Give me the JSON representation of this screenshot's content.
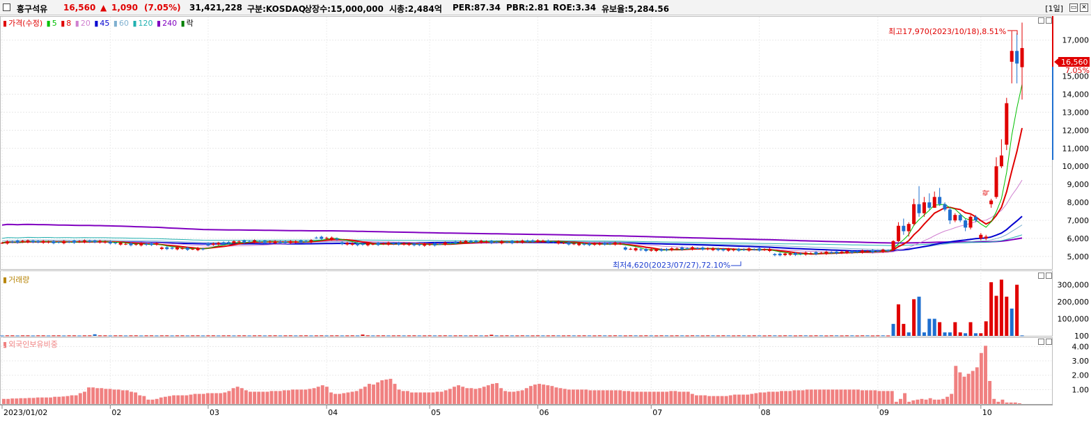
{
  "header": {
    "stock_name": "흥구석유",
    "price": "16,560",
    "change_arrow": "▲",
    "change": "1,090",
    "change_pct": "(7.05%)",
    "volume": "31,421,228",
    "market": "구분:KOSDAQ",
    "shares": "상장수:15,000,000",
    "mcap": "시총:2,484억",
    "per": "PER:87.34",
    "pbr": "PBR:2.81",
    "roe": "ROE:3.34",
    "float": "유보율:5,284.56",
    "period": "[1일]"
  },
  "colors": {
    "up": "#e00000",
    "down": "#1e6fd0",
    "ma5": "#00c000",
    "ma8": "#e00000",
    "ma20": "#d080d0",
    "ma45": "#0000d0",
    "ma60": "#7fb0d0",
    "ma120": "#20b0b0",
    "ma240": "#8000c0",
    "volume_up": "#e00000",
    "volume_down": "#1e6fd0",
    "foreign": "#f08080"
  },
  "legend": {
    "price_label": "가격(수정)",
    "ma5": "5",
    "ma8": "8",
    "ma20": "20",
    "ma45": "45",
    "ma60": "60",
    "ma120": "120",
    "ma240": "240",
    "rak": "락",
    "volume_label": "거래량",
    "foreign_label": "외국인보유비중"
  },
  "chart_data": [
    {
      "type": "candlestick",
      "name": "price",
      "x_range": [
        "2023/01/02",
        "2023/10/19"
      ],
      "x_tick_labels": [
        "2023/01/02",
        "02",
        "03",
        "04",
        "05",
        "06",
        "07",
        "08",
        "09",
        "10"
      ],
      "ylim": [
        4300,
        18300
      ],
      "y_ticks": [
        5000,
        6000,
        7000,
        8000,
        9000,
        10000,
        11000,
        12000,
        13000,
        14000,
        15000,
        17000
      ],
      "y_tick_labels": [
        "5,000",
        "6,000",
        "7,000",
        "8,000",
        "9,000",
        "10,000",
        "11,000",
        "12,000",
        "13,000",
        "14,000",
        "15,000",
        "17,000"
      ],
      "current_price_label": "16,560",
      "current_pct_label": "7.05%",
      "high_annotation": "최고17,970(2023/10/18),8.51%",
      "low_annotation": "최저4,620(2023/07/27),72.10%",
      "rak_marker": "락",
      "recent_candles": [
        {
          "date": "09/06",
          "open": 5350,
          "high": 5900,
          "low": 5300,
          "close": 5850
        },
        {
          "date": "09/07",
          "open": 5850,
          "high": 6900,
          "low": 5800,
          "close": 6700
        },
        {
          "date": "09/08",
          "open": 6700,
          "high": 7100,
          "low": 6200,
          "close": 6400
        },
        {
          "date": "09/11",
          "open": 6400,
          "high": 6900,
          "low": 6100,
          "close": 6800
        },
        {
          "date": "09/12",
          "open": 6800,
          "high": 8200,
          "low": 6700,
          "close": 7900
        },
        {
          "date": "09/13",
          "open": 7900,
          "high": 8900,
          "low": 7200,
          "close": 7400
        },
        {
          "date": "09/14",
          "open": 7400,
          "high": 8300,
          "low": 7200,
          "close": 8000
        },
        {
          "date": "09/15",
          "open": 8000,
          "high": 8500,
          "low": 7600,
          "close": 7700
        },
        {
          "date": "09/18",
          "open": 7700,
          "high": 8600,
          "low": 7700,
          "close": 8300
        },
        {
          "date": "09/19",
          "open": 8300,
          "high": 8800,
          "low": 7800,
          "close": 7900
        },
        {
          "date": "09/20",
          "open": 7900,
          "high": 8000,
          "low": 7500,
          "close": 7600
        },
        {
          "date": "09/21",
          "open": 7600,
          "high": 7700,
          "low": 6800,
          "close": 7000
        },
        {
          "date": "09/22",
          "open": 7000,
          "high": 7400,
          "low": 6900,
          "close": 7300
        },
        {
          "date": "09/25",
          "open": 7300,
          "high": 7400,
          "low": 6900,
          "close": 7000
        },
        {
          "date": "09/26",
          "open": 7000,
          "high": 7100,
          "low": 6400,
          "close": 6600
        },
        {
          "date": "09/27",
          "open": 6600,
          "high": 7300,
          "low": 6500,
          "close": 7200
        },
        {
          "date": "10/04",
          "open": 7200,
          "high": 7300,
          "low": 6900,
          "close": 7000
        },
        {
          "date": "10/05",
          "open": 6000,
          "high": 6300,
          "low": 5900,
          "close": 6200
        },
        {
          "date": "10/06",
          "open": 6000,
          "high": 6200,
          "low": 5900,
          "close": 6100
        },
        {
          "date": "10/10",
          "open": 7900,
          "high": 8200,
          "low": 7700,
          "close": 8100
        },
        {
          "date": "10/11",
          "open": 8300,
          "high": 10500,
          "low": 8200,
          "close": 10000
        },
        {
          "date": "10/12",
          "open": 10000,
          "high": 11500,
          "low": 9900,
          "close": 10600
        },
        {
          "date": "10/13",
          "open": 11200,
          "high": 13800,
          "low": 10900,
          "close": 13500
        },
        {
          "date": "10/16",
          "open": 15800,
          "high": 17500,
          "low": 14600,
          "close": 16400
        },
        {
          "date": "10/17",
          "open": 16400,
          "high": 17400,
          "low": 14600,
          "close": 15700
        },
        {
          "date": "10/18",
          "open": 15500,
          "high": 17970,
          "low": 13700,
          "close": 16560
        }
      ]
    },
    {
      "type": "bar",
      "name": "volume",
      "ylim": [
        0,
        380000
      ],
      "y_ticks": [
        100,
        100000,
        200000,
        300000
      ],
      "y_tick_labels": [
        "100",
        "100,000",
        "200,000",
        "300,000"
      ],
      "recent_values": [
        {
          "date": "09/06",
          "value": 70000,
          "dir": "down"
        },
        {
          "date": "09/07",
          "value": 185000,
          "dir": "up"
        },
        {
          "date": "09/08",
          "value": 70000,
          "dir": "up"
        },
        {
          "date": "09/11",
          "value": 20000,
          "dir": "down"
        },
        {
          "date": "09/12",
          "value": 215000,
          "dir": "up"
        },
        {
          "date": "09/13",
          "value": 230000,
          "dir": "down"
        },
        {
          "date": "09/14",
          "value": 20000,
          "dir": "down"
        },
        {
          "date": "09/15",
          "value": 100000,
          "dir": "down"
        },
        {
          "date": "09/18",
          "value": 100000,
          "dir": "down"
        },
        {
          "date": "09/19",
          "value": 80000,
          "dir": "up"
        },
        {
          "date": "09/20",
          "value": 20000,
          "dir": "down"
        },
        {
          "date": "09/21",
          "value": 20000,
          "dir": "down"
        },
        {
          "date": "09/22",
          "value": 80000,
          "dir": "up"
        },
        {
          "date": "09/25",
          "value": 20000,
          "dir": "up"
        },
        {
          "date": "09/26",
          "value": 15000,
          "dir": "down"
        },
        {
          "date": "09/27",
          "value": 80000,
          "dir": "up"
        },
        {
          "date": "10/04",
          "value": 15000,
          "dir": "down"
        },
        {
          "date": "10/05",
          "value": 15000,
          "dir": "up"
        },
        {
          "date": "10/06",
          "value": 85000,
          "dir": "up"
        },
        {
          "date": "10/10",
          "value": 315000,
          "dir": "up"
        },
        {
          "date": "10/11",
          "value": 235000,
          "dir": "up"
        },
        {
          "date": "10/12",
          "value": 330000,
          "dir": "up"
        },
        {
          "date": "10/13",
          "value": 230000,
          "dir": "up"
        },
        {
          "date": "10/16",
          "value": 160000,
          "dir": "down"
        },
        {
          "date": "10/17",
          "value": 300000,
          "dir": "up"
        }
      ]
    },
    {
      "type": "bar",
      "name": "foreign_ownership",
      "ylim": [
        0,
        4.6
      ],
      "y_ticks": [
        1,
        2,
        3,
        4
      ],
      "y_tick_labels": [
        "1.00",
        "2.00",
        "3.00",
        "4.00"
      ],
      "values": [
        0.35,
        0.35,
        0.38,
        0.38,
        0.4,
        0.4,
        0.42,
        0.42,
        0.45,
        0.45,
        0.45,
        0.45,
        0.5,
        0.5,
        0.52,
        0.55,
        0.6,
        0.6,
        0.75,
        0.85,
        1.15,
        1.15,
        1.1,
        1.1,
        1.05,
        1.05,
        1.0,
        1.0,
        0.95,
        0.95,
        0.85,
        0.8,
        0.6,
        0.55,
        0.3,
        0.3,
        0.35,
        0.45,
        0.5,
        0.55,
        0.6,
        0.6,
        0.6,
        0.6,
        0.65,
        0.7,
        0.7,
        0.7,
        0.75,
        0.75,
        0.75,
        0.75,
        0.8,
        0.9,
        1.1,
        1.2,
        1.1,
        0.95,
        0.85,
        0.85,
        0.85,
        0.85,
        0.85,
        0.9,
        0.9,
        0.9,
        0.95,
        0.95,
        1.0,
        1.0,
        1.0,
        1.0,
        1.05,
        1.1,
        1.2,
        1.3,
        1.2,
        0.8,
        0.7,
        0.7,
        0.75,
        0.8,
        0.85,
        0.9,
        1.05,
        1.2,
        1.4,
        1.35,
        1.5,
        1.65,
        1.7,
        1.75,
        1.4,
        1.0,
        0.9,
        0.9,
        0.8,
        0.8,
        0.8,
        0.8,
        0.8,
        0.8,
        0.85,
        0.85,
        0.95,
        1.05,
        1.2,
        1.3,
        1.2,
        1.1,
        1.1,
        1.05,
        1.1,
        1.2,
        1.3,
        1.4,
        1.45,
        1.1,
        0.9,
        0.85,
        0.85,
        0.9,
        0.95,
        1.1,
        1.25,
        1.35,
        1.4,
        1.35,
        1.3,
        1.25,
        1.15,
        1.1,
        1.05,
        1.0,
        1.0,
        1.0,
        1.0,
        1.0,
        0.95,
        0.95,
        0.95,
        0.95,
        0.95,
        0.95,
        0.95,
        0.95,
        0.9,
        0.9,
        0.85,
        0.85,
        0.85,
        0.85,
        0.85,
        0.85,
        0.85,
        0.85,
        0.85,
        0.9,
        0.9,
        0.85,
        0.85,
        0.85,
        0.7,
        0.6,
        0.6,
        0.6,
        0.55,
        0.55,
        0.55,
        0.55,
        0.55,
        0.6,
        0.65,
        0.65,
        0.65,
        0.65,
        0.7,
        0.75,
        0.8,
        0.8,
        0.85,
        0.85,
        0.85,
        0.9,
        0.9,
        0.9,
        0.95,
        0.95,
        0.95,
        1.0,
        1.0,
        1.0,
        1.0,
        1.0,
        1.0,
        1.0,
        1.0,
        1.0,
        1.0,
        1.0,
        1.0,
        1.0,
        0.95,
        0.95,
        0.95,
        0.95,
        0.9,
        0.9,
        0.9,
        0.9,
        0.15,
        0.35,
        0.75,
        0.15,
        0.25,
        0.3,
        0.35,
        0.3,
        0.4,
        0.3,
        0.3,
        0.35,
        0.5,
        0.7,
        2.65,
        2.2,
        1.9,
        2.1,
        2.3,
        2.55,
        3.55,
        4.05,
        1.6,
        0.35,
        0.15,
        0.3,
        0.1,
        0.1,
        0.1,
        0.05
      ]
    }
  ]
}
